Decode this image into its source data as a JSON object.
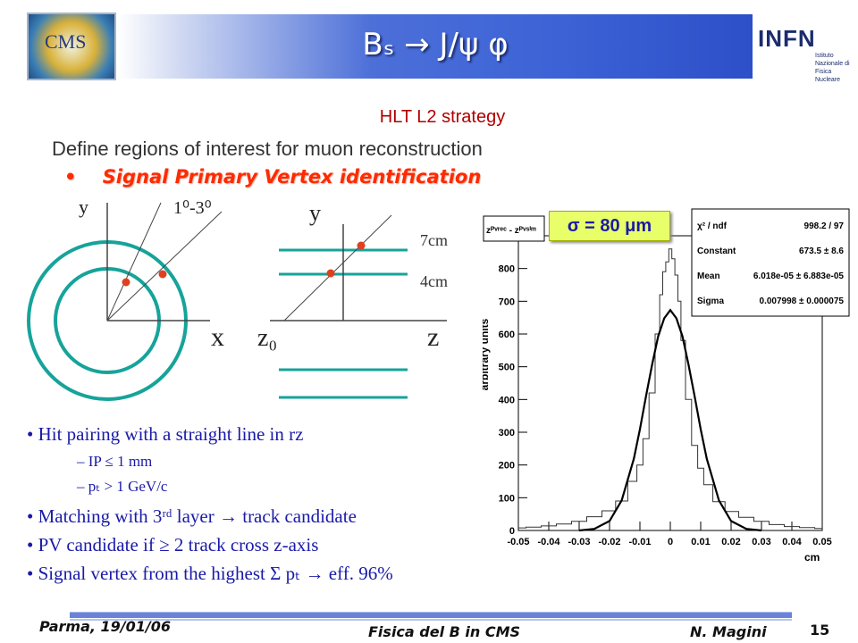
{
  "header": {
    "title": "Bₛ → J/ψ φ",
    "cms_logo_text": "CMS",
    "infn_logo_text": "INFN",
    "infn_logo_sub": "Istituto Nazionale di Fisica Nucleare"
  },
  "body": {
    "subtitle": "HLT L2 strategy",
    "define_line": "Define regions of interest for muon reconstruction",
    "signal_bullet": "•",
    "signal_line": "Signal Primary Vertex identification"
  },
  "diagram": {
    "left": {
      "y_label": "y",
      "x_label": "x",
      "angle_label": "1⁰-3⁰"
    },
    "right": {
      "y_label": "y",
      "z_label": "z",
      "z0_label": "z₀",
      "label_7cm": "7cm",
      "label_4cm": "4cm"
    },
    "colors": {
      "circle": "#16a39a",
      "dot": "#e04020",
      "line": "#444444"
    }
  },
  "bullets": [
    {
      "text": "• Hit pairing with a straight line in rz",
      "level": 0
    },
    {
      "text": "–   IP ≤ 1 mm",
      "level": 1
    },
    {
      "text": "–   pₜ > 1 GeV/c",
      "level": 1
    },
    {
      "text": "• Matching with 3ʳᵈ layer → track candidate",
      "level": 0
    },
    {
      "text": "• PV candidate if ≥ 2 track cross z-axis",
      "level": 0
    },
    {
      "text": "• Signal vertex from the highest Σ pₜ → eff. 96%",
      "level": 0
    }
  ],
  "histogram": {
    "sigma_label": "σ = 80 μm",
    "legend_title": "zᴾᵛʳᵉᶜ - zᴾᵛˢⁱᵐ",
    "stats": [
      {
        "name": "χ² / ndf",
        "value": "998.2 / 97"
      },
      {
        "name": "Constant",
        "value": "673.5 ± 8.6"
      },
      {
        "name": "Mean",
        "value": "6.018e-05 ± 6.883e-05"
      },
      {
        "name": "Sigma",
        "value": "0.007998 ± 0.000075"
      }
    ]
  },
  "chart_data": {
    "type": "line",
    "title": "",
    "xlabel": "cm",
    "ylabel": "arbitrary units",
    "xlim": [
      -0.05,
      0.05
    ],
    "ylim": [
      0,
      900
    ],
    "x_ticks": [
      "-0.05",
      "-0.04",
      "-0.03",
      "-0.02",
      "-0.01",
      "0",
      "0.01",
      "0.02",
      "0.03",
      "0.04",
      "0.05"
    ],
    "y_ticks": [
      "0",
      "100",
      "200",
      "300",
      "400",
      "500",
      "600",
      "700",
      "800"
    ],
    "grid": false,
    "series": [
      {
        "name": "",
        "style": "histogram",
        "x": [
          -0.05,
          -0.045,
          -0.04,
          -0.035,
          -0.03,
          -0.025,
          -0.02,
          -0.016,
          -0.012,
          -0.01,
          -0.008,
          -0.006,
          -0.004,
          -0.003,
          -0.002,
          -0.001,
          0,
          0.001,
          0.002,
          0.003,
          0.004,
          0.006,
          0.008,
          0.01,
          0.012,
          0.016,
          0.02,
          0.025,
          0.03,
          0.035,
          0.04,
          0.045,
          0.05
        ],
        "values": [
          8,
          10,
          14,
          20,
          28,
          42,
          60,
          90,
          150,
          200,
          280,
          420,
          600,
          720,
          790,
          820,
          860,
          830,
          780,
          700,
          580,
          400,
          260,
          190,
          140,
          88,
          58,
          40,
          28,
          18,
          12,
          9,
          6
        ]
      },
      {
        "name": "",
        "style": "gaussian-fit",
        "x": [
          -0.03,
          -0.025,
          -0.02,
          -0.016,
          -0.012,
          -0.01,
          -0.008,
          -0.006,
          -0.004,
          -0.002,
          0,
          0.002,
          0.004,
          0.006,
          0.008,
          0.01,
          0.012,
          0.016,
          0.02,
          0.025,
          0.03
        ],
        "values": [
          0,
          5,
          29,
          92,
          219,
          309,
          410,
          506,
          593,
          648,
          673,
          648,
          593,
          506,
          410,
          309,
          219,
          92,
          29,
          5,
          0
        ]
      }
    ]
  },
  "footer": {
    "left": "Parma, 19/01/06",
    "center": "Fisica del B in CMS",
    "right": "N. Magini",
    "page": "15"
  }
}
